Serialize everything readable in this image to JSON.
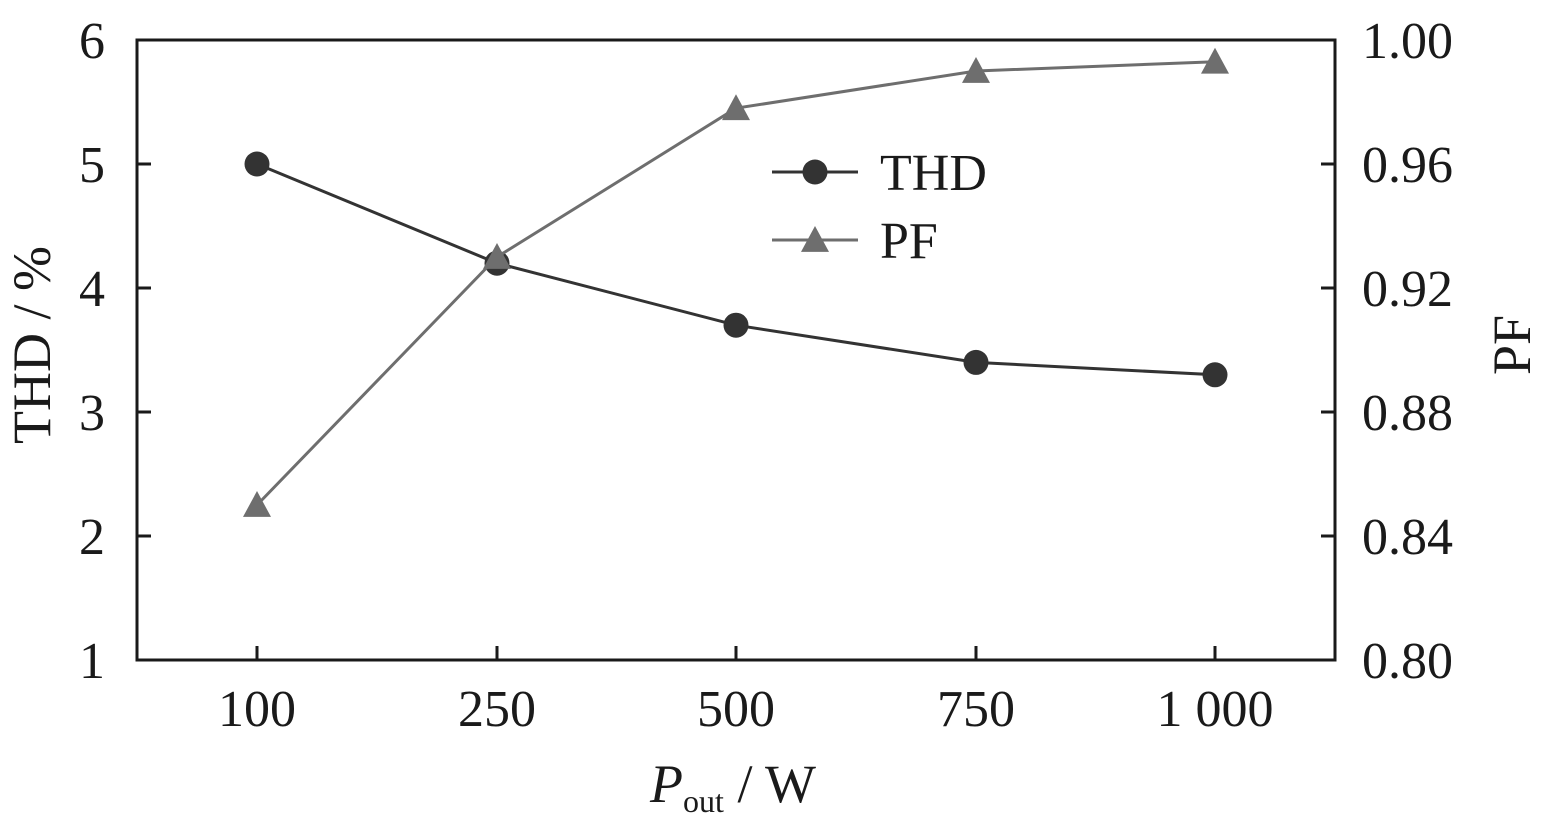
{
  "chart_data": {
    "type": "line",
    "categories": [
      "100",
      "250",
      "500",
      "750",
      "1 000"
    ],
    "xlabel": {
      "main": "P",
      "sub": "out",
      "unit": " / W"
    },
    "ylabel_left": "THD / %",
    "ylabel_right": "PF",
    "ylim_left": [
      1,
      6
    ],
    "ylim_right": [
      0.8,
      1.0
    ],
    "yticks_left": [
      "1",
      "2",
      "3",
      "4",
      "5",
      "6"
    ],
    "yticks_right": [
      "0.80",
      "0.84",
      "0.88",
      "0.92",
      "0.96",
      "1.00"
    ],
    "grid": false,
    "legend_position": "center-top",
    "series": [
      {
        "name": "THD",
        "axis": "left",
        "marker": "circle",
        "color": "#333333",
        "values": [
          5.0,
          4.2,
          3.7,
          3.4,
          3.3
        ]
      },
      {
        "name": "PF",
        "axis": "right",
        "marker": "triangle",
        "color": "#6e6e6e",
        "values": [
          0.85,
          0.93,
          0.978,
          0.99,
          0.993
        ]
      }
    ]
  }
}
